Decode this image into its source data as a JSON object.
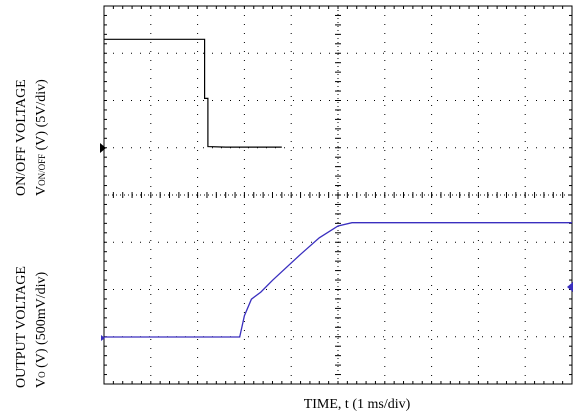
{
  "chart_data": {
    "type": "line",
    "title": "",
    "xlabel": "TIME, t (1 ms/div)",
    "xdiv_unit": "1 ms/div",
    "grid": true,
    "divisions": {
      "x": 10,
      "y": 8
    },
    "channels": [
      {
        "name": "ON/OFF VOLTAGE",
        "label_line1": "ON/OFF VOLTAGE",
        "label_line2_prefix": "V",
        "label_line2_sub": "ON/OFF",
        "label_line2_suffix": " (V) (5V/div)",
        "scale_per_div": "5V/div",
        "color": "#000000",
        "points_div": [
          [
            0,
            2.3
          ],
          [
            2.15,
            2.3
          ],
          [
            2.15,
            1.05
          ],
          [
            2.22,
            1.05
          ],
          [
            2.22,
            0.03
          ],
          [
            2.6,
            0.02
          ],
          [
            3.8,
            0.02
          ]
        ]
      },
      {
        "name": "OUTPUT VOLTAGE",
        "label_line1": "OUTPUT VOLTAGE",
        "label_line2_prefix": "V",
        "label_line2_sub": "O",
        "label_line2_suffix": " (V) (500mV/div)",
        "scale_per_div": "500mV/div",
        "color": "#3a2fbf",
        "points_div": [
          [
            0,
            0
          ],
          [
            2.9,
            0
          ],
          [
            3.0,
            0.45
          ],
          [
            3.15,
            0.8
          ],
          [
            3.35,
            0.95
          ],
          [
            3.6,
            1.2
          ],
          [
            4.2,
            1.75
          ],
          [
            4.6,
            2.1
          ],
          [
            5.0,
            2.35
          ],
          [
            5.3,
            2.42
          ],
          [
            10,
            2.42
          ]
        ]
      }
    ]
  }
}
